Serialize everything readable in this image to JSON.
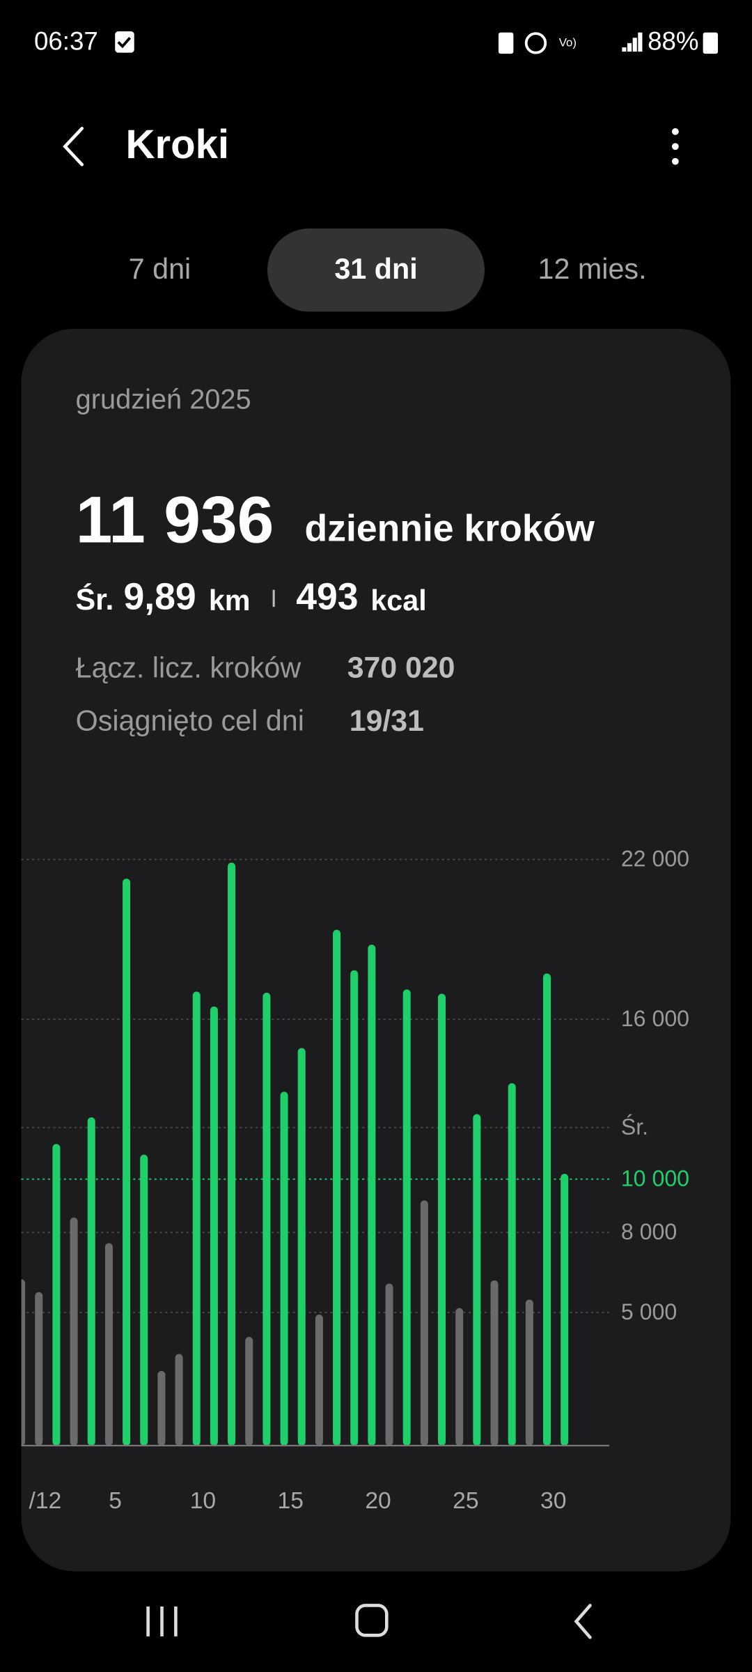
{
  "status_bar": {
    "time": "06:37",
    "battery": "88%"
  },
  "header": {
    "title": "Kroki"
  },
  "tabs": [
    "7 dni",
    "31 dni",
    "12 mies."
  ],
  "selected_tab": 1,
  "summary": {
    "period": "grudzień 2025",
    "daily_steps": "11 936",
    "daily_steps_label": "dziennie kroków",
    "avg_label": "Śr.",
    "distance": "9,89",
    "distance_unit": "km",
    "calories": "493",
    "calories_unit": "kcal",
    "total_label": "Łącz. licz. kroków",
    "total": "370 020",
    "goal_label": "Osiągnięto cel dni",
    "goal_days": "19/31"
  },
  "chart_data": {
    "type": "bar",
    "categories": [
      null,
      "/12",
      null,
      null,
      null,
      "5",
      null,
      null,
      null,
      null,
      "10",
      null,
      null,
      null,
      null,
      "15",
      null,
      null,
      null,
      null,
      "20",
      null,
      null,
      null,
      null,
      "25",
      null,
      null,
      null,
      null,
      "30",
      null
    ],
    "values": [
      6240,
      5760,
      11320,
      8560,
      12320,
      7600,
      21280,
      10920,
      2800,
      3440,
      17040,
      16480,
      21880,
      4080,
      17000,
      13280,
      14920,
      4920,
      19360,
      17840,
      18800,
      6080,
      17120,
      9200,
      16960,
      5160,
      12440,
      6200,
      13600,
      5480,
      17720,
      10200
    ],
    "goal": 10000,
    "color": "#6a6a6a",
    "goal_color": "#1fd06a",
    "ylim": [
      0,
      22000
    ],
    "yticks": [
      {
        "value": 5000,
        "label": "5 000"
      },
      {
        "value": 8000,
        "label": "8 000"
      },
      {
        "value": 10000,
        "label": "10 000"
      },
      {
        "value": 11936,
        "label": "Śr."
      },
      {
        "value": 16000,
        "label": "16 000"
      },
      {
        "value": 22000,
        "label": "22 000"
      }
    ],
    "grid": true
  }
}
